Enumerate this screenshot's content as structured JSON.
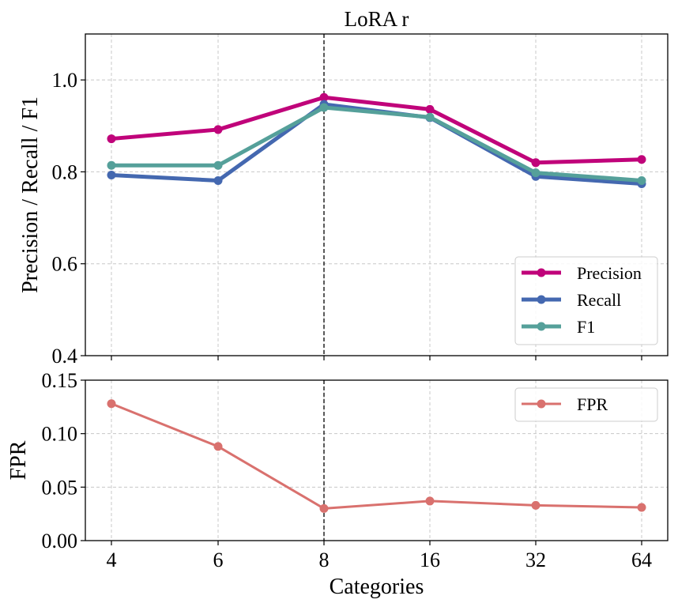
{
  "chart_data": [
    {
      "type": "line",
      "title": "LoRA r",
      "xlabel": "",
      "ylabel": "Precision / Recall / F1",
      "categories": [
        "4",
        "6",
        "8",
        "16",
        "32",
        "64"
      ],
      "ylim": [
        0.4,
        1.1
      ],
      "yticks": [
        0.4,
        0.6,
        0.8,
        1.0
      ],
      "ytick_labels": [
        "0.4",
        "0.6",
        "0.8",
        "1.0"
      ],
      "grid": true,
      "highlight_category": "8",
      "legend_position": "lower-right",
      "series": [
        {
          "name": "Precision",
          "color": "#c0037a",
          "values": [
            0.872,
            0.892,
            0.962,
            0.936,
            0.82,
            0.827
          ]
        },
        {
          "name": "Recall",
          "color": "#4468b0",
          "values": [
            0.793,
            0.781,
            0.947,
            0.918,
            0.79,
            0.774
          ]
        },
        {
          "name": "F1",
          "color": "#55a09a",
          "values": [
            0.814,
            0.814,
            0.94,
            0.919,
            0.798,
            0.781
          ]
        }
      ]
    },
    {
      "type": "line",
      "title": "",
      "xlabel": "Categories",
      "ylabel": "FPR",
      "categories": [
        "4",
        "6",
        "8",
        "16",
        "32",
        "64"
      ],
      "ylim": [
        0.0,
        0.15
      ],
      "yticks": [
        0.0,
        0.05,
        0.1,
        0.15
      ],
      "ytick_labels": [
        "0.00",
        "0.05",
        "0.10",
        "0.15"
      ],
      "grid": true,
      "highlight_category": "8",
      "legend_position": "upper-right",
      "series": [
        {
          "name": "FPR",
          "color": "#d9716e",
          "values": [
            0.128,
            0.088,
            0.03,
            0.037,
            0.033,
            0.031
          ]
        }
      ]
    }
  ]
}
